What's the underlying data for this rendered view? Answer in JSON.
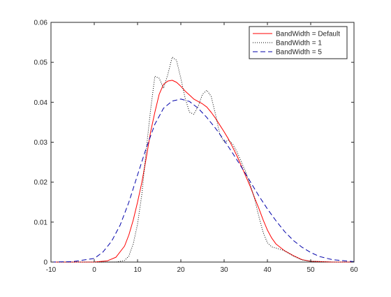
{
  "chart_data": {
    "type": "line",
    "title": "",
    "xlabel": "",
    "ylabel": "",
    "xlim": [
      -10,
      60
    ],
    "ylim": [
      0,
      0.06
    ],
    "xticks": [
      -10,
      0,
      10,
      20,
      30,
      40,
      50,
      60
    ],
    "yticks": [
      0,
      0.01,
      0.02,
      0.03,
      0.04,
      0.05,
      0.06
    ],
    "xtick_labels": [
      "-10",
      "0",
      "10",
      "20",
      "30",
      "40",
      "50",
      "60"
    ],
    "ytick_labels": [
      "0",
      "0.01",
      "0.02",
      "0.03",
      "0.04",
      "0.05",
      "0.06"
    ],
    "grid": false,
    "legend_position": "top-right",
    "series": [
      {
        "name": "BandWidth = Default",
        "color": "#ff0000",
        "style": "solid",
        "x": [
          -10,
          0,
          3,
          5,
          7,
          8,
          9,
          10,
          11,
          12,
          13,
          14,
          15,
          16,
          17,
          18,
          19,
          20,
          21,
          22,
          23,
          24,
          25,
          26,
          27,
          28,
          29,
          30,
          31,
          32,
          33,
          34,
          35,
          36,
          37,
          38,
          39,
          40,
          41,
          42,
          44,
          46,
          48,
          50,
          55,
          60
        ],
        "y": [
          0,
          0,
          0.0003,
          0.0012,
          0.004,
          0.0068,
          0.0105,
          0.015,
          0.02,
          0.026,
          0.0325,
          0.0375,
          0.042,
          0.0445,
          0.0453,
          0.0455,
          0.045,
          0.044,
          0.0428,
          0.0418,
          0.0408,
          0.0402,
          0.0396,
          0.0388,
          0.0375,
          0.036,
          0.0343,
          0.0326,
          0.0308,
          0.0287,
          0.0265,
          0.024,
          0.0215,
          0.019,
          0.0162,
          0.0135,
          0.0106,
          0.008,
          0.006,
          0.0045,
          0.0028,
          0.0016,
          0.0006,
          0.0002,
          0,
          0
        ]
      },
      {
        "name": "BandWidth = 1",
        "color": "#000000",
        "style": "dotted",
        "x": [
          -10,
          5,
          7,
          8,
          9,
          10,
          11,
          12,
          13,
          14,
          15,
          16,
          17,
          18,
          19,
          20,
          21,
          22,
          23,
          24,
          25,
          26,
          27,
          28,
          29,
          30,
          31,
          32,
          33,
          34,
          35,
          36,
          37,
          38,
          39,
          40,
          41,
          42,
          44,
          46,
          48,
          50,
          55,
          60
        ],
        "y": [
          0,
          0,
          0.0004,
          0.0015,
          0.0045,
          0.0095,
          0.017,
          0.028,
          0.038,
          0.0465,
          0.046,
          0.0435,
          0.047,
          0.0513,
          0.0505,
          0.046,
          0.041,
          0.0375,
          0.037,
          0.039,
          0.042,
          0.043,
          0.0415,
          0.037,
          0.032,
          0.03,
          0.0305,
          0.0295,
          0.0275,
          0.025,
          0.0225,
          0.0195,
          0.016,
          0.0115,
          0.0075,
          0.0048,
          0.0038,
          0.0035,
          0.0028,
          0.0015,
          0.0005,
          0.0002,
          0,
          0
        ]
      },
      {
        "name": "BandWidth = 5",
        "color": "#0000aa",
        "style": "dashed",
        "x": [
          -10,
          -5,
          0,
          2,
          4,
          6,
          8,
          10,
          12,
          14,
          16,
          18,
          20,
          22,
          24,
          26,
          28,
          30,
          32,
          34,
          36,
          38,
          40,
          42,
          44,
          46,
          48,
          50,
          52,
          55,
          60
        ],
        "y": [
          0,
          0.0001,
          0.0009,
          0.0025,
          0.0052,
          0.0093,
          0.015,
          0.0218,
          0.0285,
          0.0345,
          0.0385,
          0.0403,
          0.0408,
          0.0402,
          0.0385,
          0.0362,
          0.0335,
          0.0305,
          0.0272,
          0.0238,
          0.0202,
          0.0166,
          0.0133,
          0.0103,
          0.0076,
          0.0054,
          0.0037,
          0.0024,
          0.0014,
          0.0006,
          0.0001
        ]
      }
    ]
  }
}
